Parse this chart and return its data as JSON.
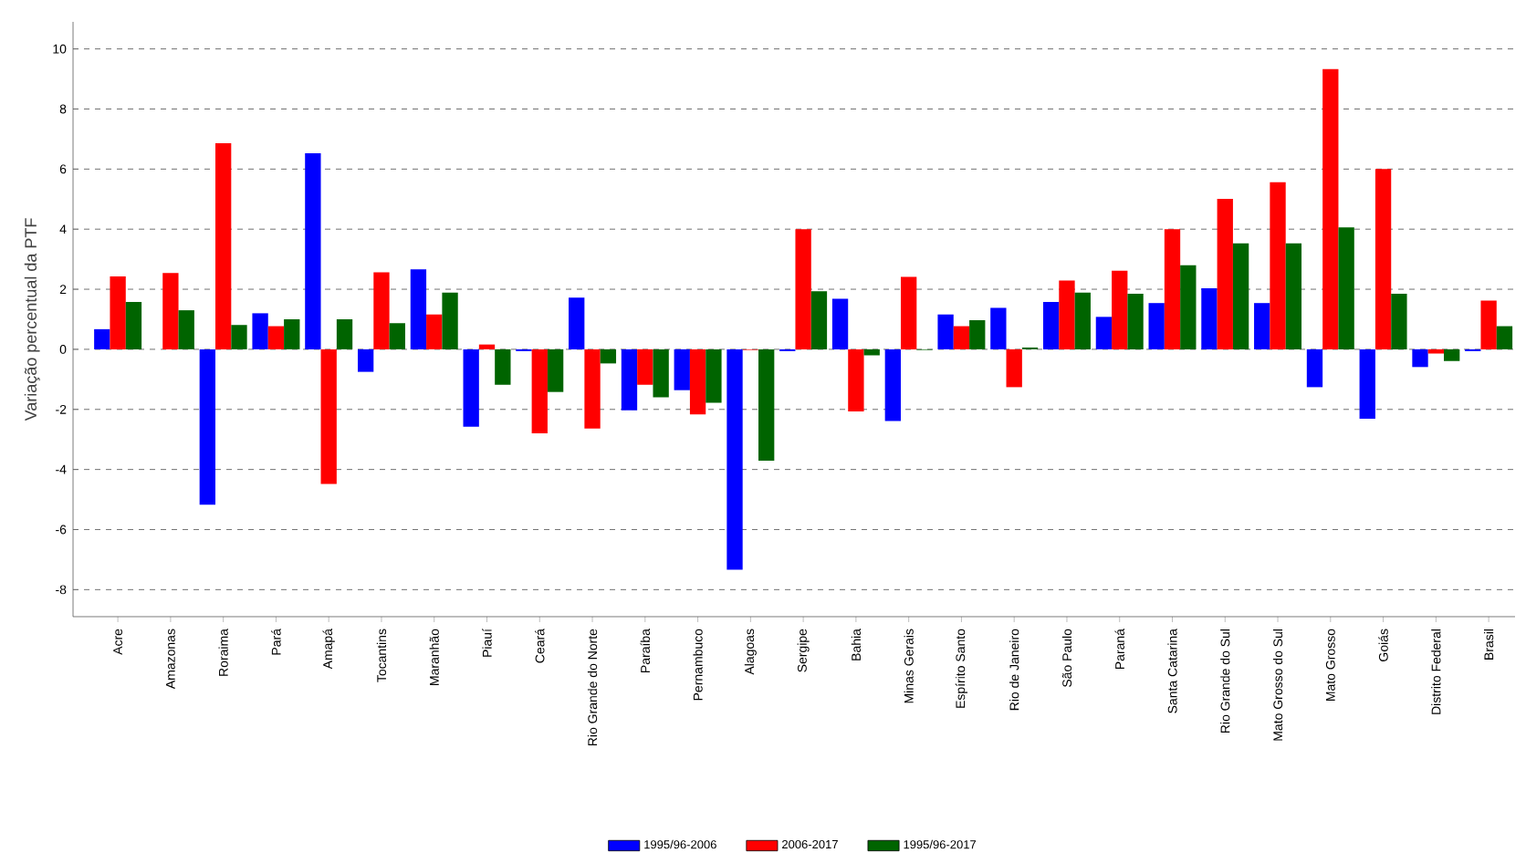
{
  "chart_data": {
    "type": "bar",
    "ylabel": "Variação percentual da PTF",
    "categories": [
      "Acre",
      "Amazonas",
      "Roraima",
      "Pará",
      "Amapá",
      "Tocantins",
      "Maranhão",
      "Piauí",
      "Ceará",
      "Rio Grande do Norte",
      "Paraíba",
      "Pernambuco",
      "Alagoas",
      "Sergipe",
      "Bahia",
      "Minas Gerais",
      "Espírito Santo",
      "Rio de Janeiro",
      "São Paulo",
      "Paraná",
      "Santa Catarina",
      "Rio Grande do Sul",
      "Mato Grosso do Sul",
      "Mato Grosso",
      "Goiás",
      "Distrito Federal",
      "Brasil"
    ],
    "series": [
      {
        "name": "1995/96-2006",
        "color": "#0000ff",
        "values": [
          0.67,
          0,
          -5.17,
          1.2,
          6.53,
          -0.75,
          2.66,
          -2.58,
          -0.06,
          1.72,
          -2.03,
          -1.36,
          -7.34,
          -0.06,
          1.68,
          -2.39,
          1.16,
          1.38,
          1.58,
          1.08,
          1.54,
          2.03,
          1.54,
          -1.26,
          -2.31,
          -0.59,
          -0.06
        ]
      },
      {
        "name": "2006-2017",
        "color": "#ff0000",
        "values": [
          2.43,
          2.54,
          6.86,
          0.77,
          -4.48,
          2.56,
          1.16,
          0.16,
          -2.8,
          -2.64,
          -1.18,
          -2.17,
          -0.02,
          4.0,
          -2.07,
          2.41,
          0.77,
          -1.26,
          2.29,
          2.62,
          4.0,
          5.01,
          5.56,
          9.33,
          6.0,
          -0.14,
          1.62
        ]
      },
      {
        "name": "1995/96-2017",
        "color": "#006400",
        "values": [
          1.58,
          1.3,
          0.81,
          1.0,
          1.0,
          0.87,
          1.89,
          -1.18,
          -1.42,
          -0.47,
          -1.6,
          -1.78,
          -3.71,
          1.93,
          -0.2,
          -0.02,
          0.97,
          0.06,
          1.89,
          1.85,
          2.8,
          3.53,
          3.53,
          4.06,
          1.85,
          -0.39,
          0.77
        ]
      }
    ],
    "ylim": [
      -8.9,
      10.9
    ],
    "yticks": [
      -8,
      -6,
      -4,
      -2,
      0,
      2,
      4,
      6,
      8,
      10
    ],
    "grid": "y",
    "legend": "bottom"
  }
}
